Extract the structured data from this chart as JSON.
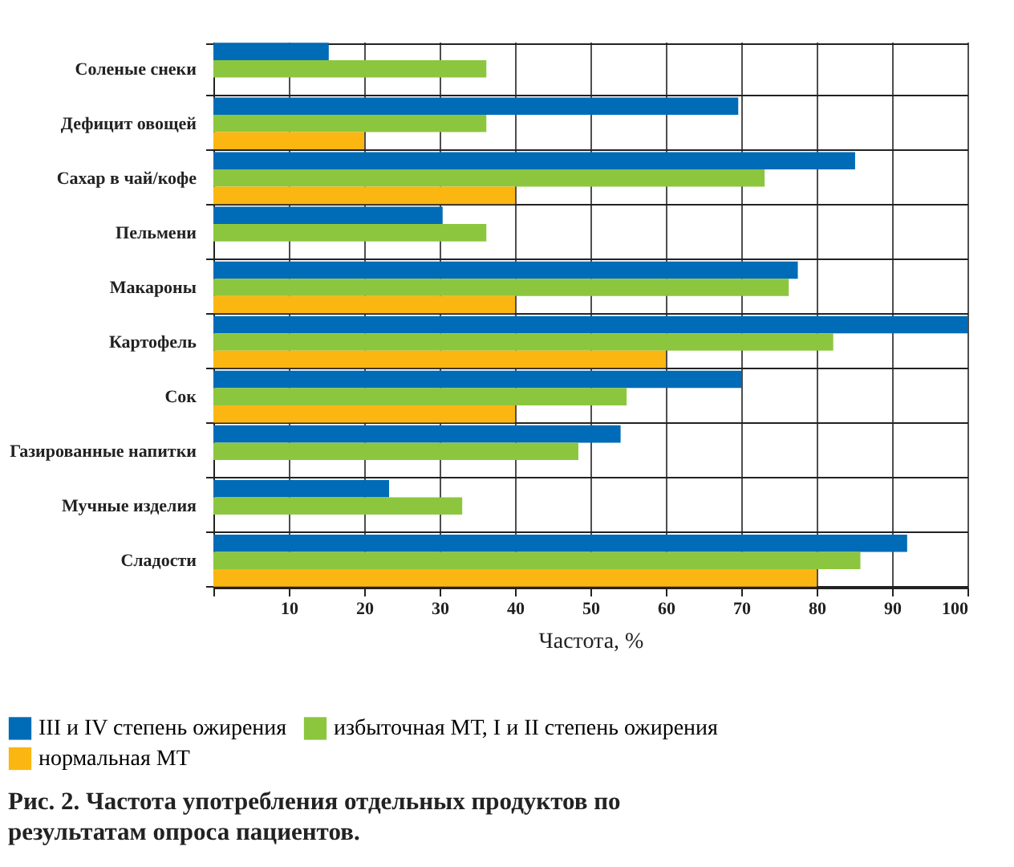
{
  "chart_data": {
    "type": "bar",
    "orientation": "horizontal",
    "title": "Рис. 2. Частота употребления отдельных продуктов по результатам опроса пациентов.",
    "xlabel": "Частота, %",
    "categories": [
      "Соленые снеки",
      "Дефицит овощей",
      "Сахар в чай/кофе",
      "Пельмени",
      "Макароны",
      "Картофель",
      "Сок",
      "Газированные напитки",
      "Мучные изделия",
      "Сладости"
    ],
    "series": [
      {
        "name": "III и IV степень ожирения",
        "color": "#006bb6",
        "values": [
          15.3,
          69.6,
          85.1,
          30.4,
          77.5,
          100,
          70,
          54,
          23.3,
          92
        ]
      },
      {
        "name": "избыточная МТ, I и II степень ожирения",
        "color": "#8cc63f",
        "values": [
          36.2,
          36.2,
          73.1,
          36.2,
          76.3,
          82.2,
          54.8,
          48.4,
          33,
          85.8
        ]
      },
      {
        "name": "нормальная МТ",
        "color": "#fbb612",
        "values": [
          null,
          20,
          40,
          null,
          40,
          60,
          40,
          null,
          null,
          80
        ]
      }
    ],
    "xlim": [
      0,
      100
    ],
    "xticks": [
      {
        "value": 0,
        "label": null
      },
      10,
      20,
      30,
      40,
      50,
      60,
      70,
      80,
      90,
      100
    ],
    "grid": true,
    "legend": "bottom"
  }
}
